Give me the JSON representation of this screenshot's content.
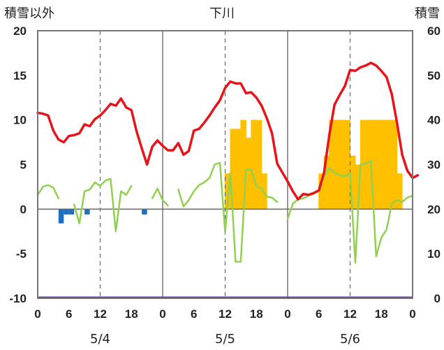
{
  "chart_data": {
    "type": "line",
    "title": "下川",
    "left_axis_title": "積雪以外",
    "right_axis_title": "積雪",
    "y_left": {
      "min": -10,
      "max": 20,
      "ticks": [
        "20",
        "15",
        "10",
        "5",
        "0",
        "-5",
        "-10"
      ]
    },
    "y_right": {
      "min": 0,
      "max": 60,
      "ticks": [
        "60",
        "50",
        "40",
        "30",
        "20",
        "10",
        "0"
      ]
    },
    "x_range": [
      0,
      72
    ],
    "x_tick_labels": [
      "0",
      "6",
      "12",
      "18",
      "0",
      "6",
      "12",
      "18",
      "0",
      "6",
      "12",
      "18",
      "0"
    ],
    "date_labels": [
      "5/4",
      "5/5",
      "5/6"
    ],
    "day_boundaries": [
      24,
      48
    ],
    "noon_lines": [
      12,
      36,
      60
    ],
    "grid": "dashed vertical at noon, solid at midnight",
    "series": [
      {
        "name": "",
        "role": "temperature",
        "axis": "left",
        "color": "#e8141b",
        "width": 3.5,
        "points": [
          [
            0,
            10.8
          ],
          [
            1,
            10.7
          ],
          [
            2,
            10.5
          ],
          [
            3,
            8.8
          ],
          [
            4,
            7.8
          ],
          [
            5,
            7.5
          ],
          [
            6,
            8.2
          ],
          [
            7,
            8.3
          ],
          [
            8,
            8.5
          ],
          [
            9,
            9.5
          ],
          [
            10,
            9.3
          ],
          [
            11,
            10.1
          ],
          [
            12,
            10.5
          ],
          [
            13,
            11.1
          ],
          [
            14,
            11.8
          ],
          [
            15,
            11.6
          ],
          [
            16,
            12.4
          ],
          [
            17,
            11.4
          ],
          [
            18,
            11.1
          ],
          [
            19,
            8.7
          ],
          [
            20,
            6.8
          ],
          [
            21,
            5.0
          ],
          [
            22,
            7.0
          ],
          [
            23,
            7.7
          ],
          [
            24,
            7.1
          ],
          [
            25,
            6.6
          ],
          [
            26,
            6.6
          ],
          [
            27,
            7.4
          ],
          [
            28,
            6.1
          ],
          [
            29,
            6.5
          ],
          [
            30,
            8.8
          ],
          [
            31,
            9.0
          ],
          [
            32,
            9.7
          ],
          [
            33,
            10.5
          ],
          [
            34,
            11.4
          ],
          [
            35,
            12.2
          ],
          [
            36,
            13.6
          ],
          [
            37,
            14.3
          ],
          [
            38,
            14.1
          ],
          [
            39,
            14.1
          ],
          [
            40,
            13.0
          ],
          [
            41,
            13.1
          ],
          [
            42,
            12.5
          ],
          [
            43,
            11.6
          ],
          [
            44,
            10.2
          ],
          [
            45,
            8.5
          ],
          [
            46,
            5.1
          ],
          [
            47,
            4.1
          ],
          [
            48,
            3.1
          ],
          [
            49,
            2.0
          ],
          [
            50,
            1.1
          ],
          [
            51,
            1.7
          ],
          [
            52,
            1.6
          ],
          [
            53,
            1.8
          ],
          [
            54,
            2.1
          ],
          [
            55,
            4.1
          ],
          [
            56,
            8.3
          ],
          [
            57,
            11.7
          ],
          [
            58,
            12.8
          ],
          [
            59,
            13.8
          ],
          [
            60,
            15.6
          ],
          [
            61,
            15.5
          ],
          [
            62,
            15.9
          ],
          [
            63,
            16.1
          ],
          [
            64,
            16.4
          ],
          [
            65,
            16.1
          ],
          [
            66,
            15.5
          ],
          [
            67,
            14.8
          ],
          [
            68,
            12.9
          ],
          [
            69,
            9.7
          ],
          [
            70,
            6.1
          ],
          [
            71,
            4.3
          ],
          [
            72,
            3.5
          ],
          [
            73,
            3.8
          ]
        ]
      },
      {
        "name": "",
        "role": "wind",
        "axis": "left",
        "color": "#92d050",
        "width": 2.5,
        "segments": [
          [
            [
              0,
              1.6
            ],
            [
              1,
              2.5
            ],
            [
              2,
              2.7
            ],
            [
              3,
              2.4
            ],
            [
              4,
              1.2
            ]
          ],
          [
            [
              7,
              0.5
            ],
            [
              8,
              -1.6
            ],
            [
              9,
              2.0
            ],
            [
              10,
              2.2
            ],
            [
              11,
              3.0
            ],
            [
              12,
              2.6
            ],
            [
              13,
              3.2
            ],
            [
              14,
              3.4
            ],
            [
              15,
              -2.5
            ],
            [
              16,
              2.0
            ],
            [
              17,
              1.6
            ],
            [
              18,
              2.6
            ]
          ],
          [
            [
              22,
              1.2
            ],
            [
              23,
              2.3
            ],
            [
              24,
              1.0
            ],
            [
              25,
              0.4
            ]
          ],
          [
            [
              27,
              2.2
            ],
            [
              28,
              0.3
            ],
            [
              29,
              1.0
            ],
            [
              30,
              2.0
            ],
            [
              31,
              2.7
            ],
            [
              32,
              3.0
            ],
            [
              33,
              3.5
            ],
            [
              34,
              5.0
            ],
            [
              35,
              5.2
            ],
            [
              36,
              -2.6
            ],
            [
              37,
              4.0
            ],
            [
              38,
              -5.9
            ],
            [
              39,
              -5.9
            ],
            [
              40,
              4.4
            ],
            [
              41,
              4.4
            ],
            [
              42,
              2.6
            ],
            [
              43,
              2.3
            ],
            [
              44,
              1.4
            ],
            [
              45,
              1.3
            ],
            [
              46,
              0.8
            ]
          ],
          [
            [
              48,
              -1.1
            ],
            [
              49,
              0.6
            ],
            [
              50,
              1.1
            ],
            [
              51,
              1.2
            ],
            [
              52,
              1.5
            ],
            [
              53,
              1.7
            ],
            [
              54,
              2.0
            ],
            [
              55,
              3.7
            ],
            [
              56,
              4.6
            ],
            [
              57,
              4.1
            ],
            [
              58,
              3.8
            ],
            [
              59,
              3.7
            ],
            [
              60,
              4.0
            ],
            [
              61,
              -6.0
            ],
            [
              62,
              5.0
            ],
            [
              63,
              5.1
            ],
            [
              64,
              5.4
            ],
            [
              65,
              -5.3
            ],
            [
              66,
              -3.2
            ],
            [
              67,
              -2.3
            ],
            [
              68,
              0.6
            ],
            [
              69,
              1.0
            ],
            [
              70,
              0.8
            ],
            [
              71,
              1.3
            ],
            [
              72,
              1.5
            ]
          ]
        ]
      },
      {
        "name": "",
        "role": "negative bars",
        "axis": "left",
        "color": "#1f6fbf",
        "type": "bar",
        "bars": [
          [
            4,
            -1.6
          ],
          [
            5,
            -0.6
          ],
          [
            6,
            -0.6
          ],
          [
            9,
            -0.6
          ],
          [
            20,
            -0.6
          ]
        ]
      },
      {
        "name": "",
        "role": "snow depth",
        "axis": "right",
        "color": "#ffc000",
        "type": "bar",
        "bars": [
          [
            36,
            28
          ],
          [
            37,
            38
          ],
          [
            38,
            38
          ],
          [
            39,
            40
          ],
          [
            40,
            36
          ],
          [
            41,
            40
          ],
          [
            42,
            40
          ],
          [
            43,
            28
          ],
          [
            54,
            28
          ],
          [
            55,
            32
          ],
          [
            56,
            40
          ],
          [
            57,
            40
          ],
          [
            58,
            40
          ],
          [
            59,
            40
          ],
          [
            60,
            32
          ],
          [
            61,
            30
          ],
          [
            62,
            40
          ],
          [
            63,
            40
          ],
          [
            64,
            40
          ],
          [
            65,
            40
          ],
          [
            66,
            40
          ],
          [
            67,
            40
          ],
          [
            68,
            40
          ],
          [
            69,
            28
          ]
        ]
      },
      {
        "name": "",
        "role": "baseline",
        "axis": "left",
        "color": "#7030a0",
        "value": -10
      }
    ]
  }
}
